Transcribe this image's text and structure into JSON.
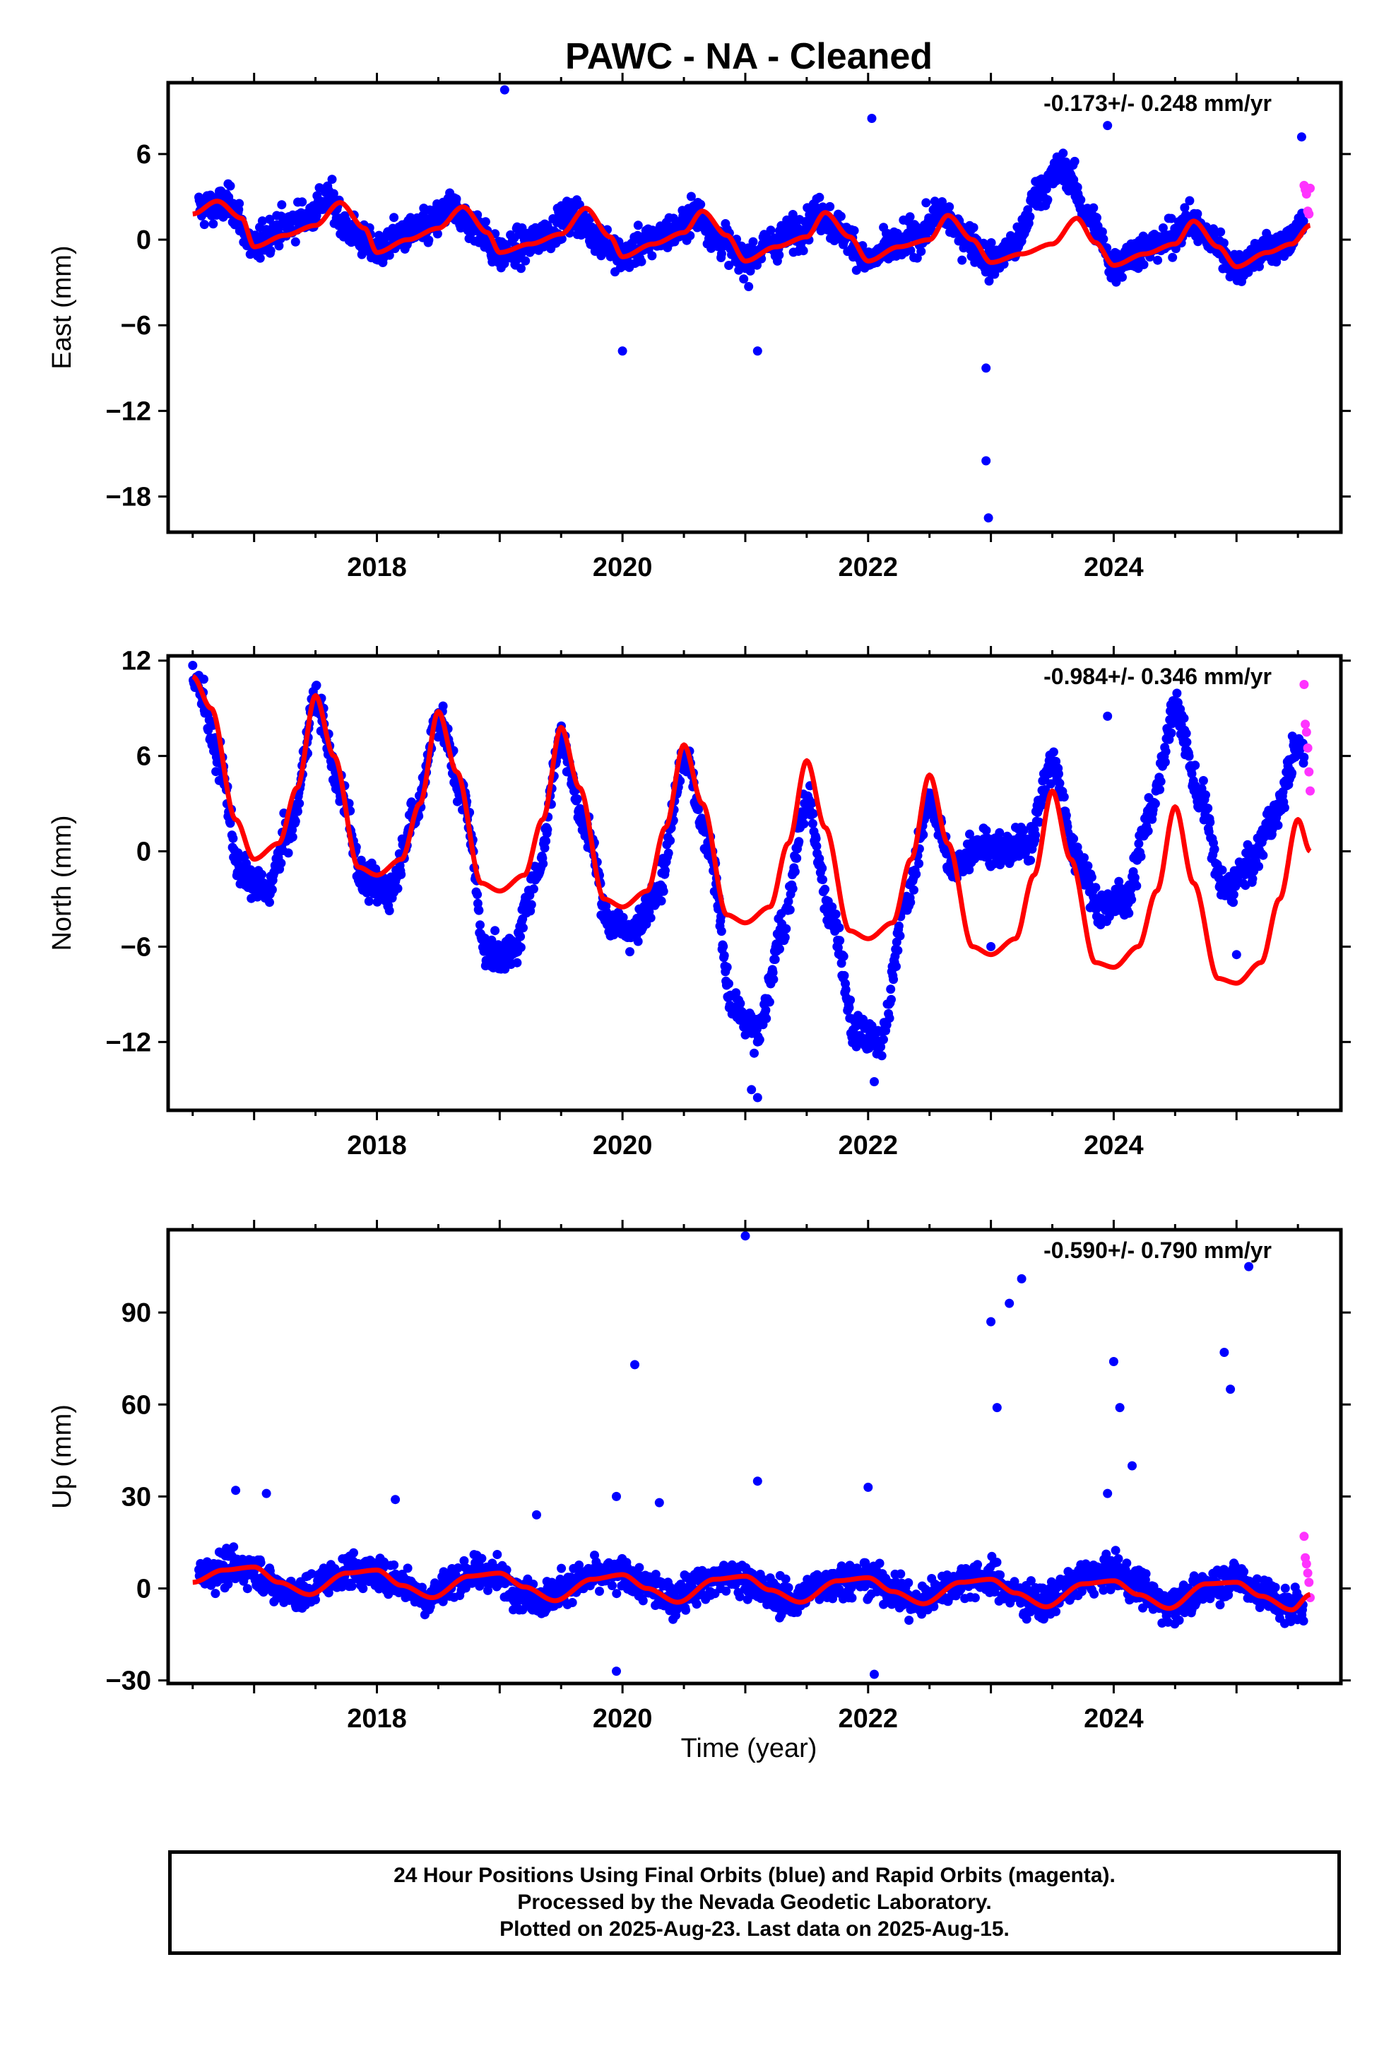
{
  "title": "PAWC  - NA - Cleaned",
  "xlabel": "Time (year)",
  "footer": {
    "line1": "24 Hour Positions Using Final Orbits (blue) and Rapid Orbits (magenta).",
    "line2": "Processed by the Nevada Geodetic Laboratory.",
    "line3": "Plotted on 2025-Aug-23. Last data on 2025-Aug-15."
  },
  "colors": {
    "final": "#0000ff",
    "rapid": "#ff33ff",
    "model": "#ff0000",
    "axis": "#000000"
  },
  "chart_data": [
    {
      "type": "scatter",
      "component": "East",
      "ylabel": "East (mm)",
      "rate_text": "-0.173+/- 0.248 mm/yr",
      "xlim": [
        2016.3,
        2025.85
      ],
      "ylim": [
        -20.5,
        11.0
      ],
      "x_ticks": [
        2018,
        2020,
        2022,
        2024
      ],
      "y_ticks": [
        -18,
        -12,
        -6,
        0,
        6
      ],
      "grid": false,
      "series": [
        {
          "name": "Final Orbits (blue)",
          "x": [
            2016.6,
            2016.8,
            2017.0,
            2017.2,
            2017.4,
            2017.6,
            2017.8,
            2018.0,
            2018.2,
            2018.4,
            2018.6,
            2018.8,
            2019.0,
            2019.2,
            2019.4,
            2019.6,
            2019.8,
            2020.0,
            2020.2,
            2020.4,
            2020.6,
            2020.8,
            2021.0,
            2021.2,
            2021.4,
            2021.6,
            2021.8,
            2022.0,
            2022.2,
            2022.4,
            2022.6,
            2022.8,
            2023.0,
            2023.2,
            2023.4,
            2023.6,
            2023.8,
            2024.0,
            2024.2,
            2024.4,
            2024.6,
            2024.8,
            2025.0,
            2025.2,
            2025.4,
            2025.5
          ],
          "y": [
            2.2,
            2.5,
            -0.5,
            0.8,
            1.5,
            2.8,
            0.5,
            -0.8,
            0.3,
            0.8,
            2.2,
            1.0,
            -1.0,
            -0.5,
            0.6,
            1.8,
            0.2,
            -1.2,
            -0.2,
            0.5,
            1.8,
            0.0,
            -1.5,
            -0.3,
            0.4,
            1.8,
            0.5,
            -1.5,
            -0.5,
            0.3,
            1.8,
            0.2,
            -1.6,
            -0.4,
            3.5,
            5.0,
            1.5,
            -1.8,
            -0.8,
            -0.2,
            1.2,
            0.0,
            -1.9,
            -0.9,
            -0.4,
            1.0
          ],
          "outliers_x": [
            2019.04,
            2022.03,
            2023.95,
            2022.96,
            2022.96,
            2022.98,
            2020.0,
            2021.1,
            2025.53
          ],
          "outliers_y": [
            10.5,
            8.5,
            8.0,
            -9.0,
            -15.5,
            -19.5,
            -7.8,
            -7.8,
            7.2
          ]
        },
        {
          "name": "Rapid Orbits (magenta)",
          "x": [
            2025.55,
            2025.56,
            2025.57,
            2025.58,
            2025.59,
            2025.6
          ],
          "y": [
            3.8,
            3.5,
            3.2,
            2.0,
            1.8,
            3.6
          ]
        }
      ],
      "model": {
        "name": "model",
        "anchor": [
          [
            2016.5,
            1.8
          ],
          [
            2016.7,
            2.7
          ],
          [
            2016.9,
            1.5
          ],
          [
            2017.0,
            -0.5
          ],
          [
            2017.25,
            0.3
          ],
          [
            2017.5,
            1.0
          ],
          [
            2017.7,
            2.6
          ],
          [
            2017.9,
            0.8
          ],
          [
            2018.0,
            -0.9
          ],
          [
            2018.25,
            0.0
          ],
          [
            2018.5,
            0.8
          ],
          [
            2018.7,
            2.3
          ],
          [
            2018.9,
            0.5
          ],
          [
            2019.0,
            -0.9
          ],
          [
            2019.25,
            -0.3
          ],
          [
            2019.5,
            0.4
          ],
          [
            2019.7,
            2.2
          ],
          [
            2019.9,
            0.2
          ],
          [
            2020.0,
            -1.2
          ],
          [
            2020.25,
            -0.3
          ],
          [
            2020.5,
            0.5
          ],
          [
            2020.65,
            2.0
          ],
          [
            2020.85,
            0.3
          ],
          [
            2021.0,
            -1.5
          ],
          [
            2021.25,
            -0.5
          ],
          [
            2021.5,
            0.2
          ],
          [
            2021.65,
            1.9
          ],
          [
            2021.85,
            0.2
          ],
          [
            2022.0,
            -1.5
          ],
          [
            2022.25,
            -0.5
          ],
          [
            2022.5,
            0.0
          ],
          [
            2022.65,
            1.7
          ],
          [
            2022.85,
            0.0
          ],
          [
            2023.0,
            -1.6
          ],
          [
            2023.25,
            -1.0
          ],
          [
            2023.5,
            -0.3
          ],
          [
            2023.7,
            1.5
          ],
          [
            2023.85,
            -0.2
          ],
          [
            2024.0,
            -1.8
          ],
          [
            2024.25,
            -1.0
          ],
          [
            2024.5,
            -0.3
          ],
          [
            2024.65,
            1.3
          ],
          [
            2024.85,
            -0.5
          ],
          [
            2025.0,
            -1.9
          ],
          [
            2025.25,
            -0.9
          ],
          [
            2025.45,
            -0.3
          ],
          [
            2025.6,
            1.0
          ]
        ]
      }
    },
    {
      "type": "scatter",
      "component": "North",
      "ylabel": "North (mm)",
      "rate_text": "-0.984+/- 0.346 mm/yr",
      "xlim": [
        2016.3,
        2025.85
      ],
      "ylim": [
        -16.3,
        12.3
      ],
      "x_ticks": [
        2018,
        2020,
        2022,
        2024
      ],
      "y_ticks": [
        -12,
        -6,
        0,
        6,
        12
      ],
      "grid": false,
      "series": [
        {
          "name": "Final Orbits (blue)",
          "x": [
            2016.55,
            2016.7,
            2016.9,
            2017.1,
            2017.3,
            2017.5,
            2017.7,
            2017.9,
            2018.1,
            2018.3,
            2018.5,
            2018.7,
            2018.9,
            2019.1,
            2019.3,
            2019.5,
            2019.7,
            2019.9,
            2020.1,
            2020.3,
            2020.5,
            2020.7,
            2020.9,
            2021.1,
            2021.3,
            2021.5,
            2021.7,
            2021.9,
            2022.1,
            2022.3,
            2022.5,
            2022.7,
            2022.9,
            2023.1,
            2023.3,
            2023.5,
            2023.7,
            2023.9,
            2024.1,
            2024.3,
            2024.5,
            2024.7,
            2024.9,
            2025.1,
            2025.3,
            2025.5
          ],
          "y": [
            10.5,
            6.0,
            -1.5,
            -2.5,
            1.5,
            9.5,
            4.0,
            -2.0,
            -2.5,
            2.0,
            8.5,
            3.5,
            -6.5,
            -6.5,
            -1.5,
            7.0,
            1.5,
            -4.5,
            -5.0,
            -2.0,
            6.0,
            0.5,
            -10.0,
            -11.5,
            -5.0,
            3.0,
            -4.0,
            -11.5,
            -12.0,
            -3.5,
            3.0,
            -1.0,
            0.5,
            0.0,
            0.5,
            5.5,
            -0.5,
            -3.5,
            -3.0,
            2.5,
            9.0,
            3.5,
            -2.5,
            -1.0,
            2.0,
            6.5
          ],
          "outliers_x": [
            2021.05,
            2021.1,
            2022.05,
            2023.0,
            2023.95,
            2025.0
          ],
          "outliers_y": [
            -15.0,
            -15.5,
            -14.5,
            -6.0,
            8.5,
            -6.5
          ]
        },
        {
          "name": "Rapid Orbits (magenta)",
          "x": [
            2025.55,
            2025.56,
            2025.57,
            2025.58,
            2025.59,
            2025.6
          ],
          "y": [
            10.5,
            8.0,
            7.5,
            6.5,
            5.0,
            3.8
          ]
        }
      ],
      "model": {
        "name": "model",
        "anchor": [
          [
            2016.5,
            11.0
          ],
          [
            2016.65,
            9.0
          ],
          [
            2016.85,
            2.0
          ],
          [
            2017.0,
            -0.5
          ],
          [
            2017.2,
            0.5
          ],
          [
            2017.35,
            4.0
          ],
          [
            2017.5,
            9.8
          ],
          [
            2017.65,
            6.0
          ],
          [
            2017.85,
            -1.0
          ],
          [
            2018.0,
            -1.5
          ],
          [
            2018.2,
            -0.5
          ],
          [
            2018.35,
            3.0
          ],
          [
            2018.5,
            8.8
          ],
          [
            2018.65,
            5.0
          ],
          [
            2018.85,
            -2.0
          ],
          [
            2019.0,
            -2.5
          ],
          [
            2019.2,
            -1.5
          ],
          [
            2019.35,
            2.0
          ],
          [
            2019.5,
            7.8
          ],
          [
            2019.65,
            4.0
          ],
          [
            2019.85,
            -3.0
          ],
          [
            2020.0,
            -3.5
          ],
          [
            2020.2,
            -2.5
          ],
          [
            2020.35,
            1.5
          ],
          [
            2020.5,
            6.7
          ],
          [
            2020.65,
            3.0
          ],
          [
            2020.85,
            -4.0
          ],
          [
            2021.0,
            -4.5
          ],
          [
            2021.2,
            -3.5
          ],
          [
            2021.35,
            0.5
          ],
          [
            2021.5,
            5.7
          ],
          [
            2021.65,
            1.5
          ],
          [
            2021.85,
            -5.0
          ],
          [
            2022.0,
            -5.5
          ],
          [
            2022.2,
            -4.5
          ],
          [
            2022.35,
            -0.5
          ],
          [
            2022.5,
            4.8
          ],
          [
            2022.65,
            0.5
          ],
          [
            2022.85,
            -6.0
          ],
          [
            2023.0,
            -6.5
          ],
          [
            2023.2,
            -5.5
          ],
          [
            2023.35,
            -1.5
          ],
          [
            2023.5,
            3.8
          ],
          [
            2023.65,
            -0.5
          ],
          [
            2023.85,
            -7.0
          ],
          [
            2024.0,
            -7.3
          ],
          [
            2024.2,
            -6.0
          ],
          [
            2024.35,
            -2.5
          ],
          [
            2024.5,
            2.8
          ],
          [
            2024.65,
            -2.0
          ],
          [
            2024.85,
            -8.0
          ],
          [
            2025.0,
            -8.3
          ],
          [
            2025.2,
            -7.0
          ],
          [
            2025.35,
            -3.0
          ],
          [
            2025.5,
            2.0
          ],
          [
            2025.6,
            0.0
          ]
        ]
      }
    },
    {
      "type": "scatter",
      "component": "Up",
      "ylabel": "Up (mm)",
      "rate_text": "-0.590+/- 0.790 mm/yr",
      "xlim": [
        2016.3,
        2025.85
      ],
      "ylim": [
        -31.0,
        117.0
      ],
      "x_ticks": [
        2018,
        2020,
        2022,
        2024
      ],
      "y_ticks": [
        -30,
        0,
        30,
        60,
        90
      ],
      "grid": false,
      "series": [
        {
          "name": "Final Orbits (blue)",
          "x": [
            2016.6,
            2016.8,
            2017.0,
            2017.2,
            2017.4,
            2017.6,
            2017.8,
            2018.0,
            2018.2,
            2018.4,
            2018.6,
            2018.8,
            2019.0,
            2019.2,
            2019.4,
            2019.6,
            2019.8,
            2020.0,
            2020.2,
            2020.4,
            2020.6,
            2020.8,
            2021.0,
            2021.2,
            2021.4,
            2021.6,
            2021.8,
            2022.0,
            2022.2,
            2022.4,
            2022.6,
            2022.8,
            2023.0,
            2023.2,
            2023.4,
            2023.6,
            2023.8,
            2024.0,
            2024.2,
            2024.4,
            2024.6,
            2024.8,
            2025.0,
            2025.2,
            2025.4,
            2025.5
          ],
          "y": [
            5.0,
            7.0,
            6.0,
            0.0,
            -2.0,
            3.0,
            6.0,
            5.0,
            2.0,
            -3.0,
            2.0,
            5.0,
            4.0,
            -2.0,
            -3.0,
            2.0,
            4.0,
            4.0,
            1.0,
            -4.0,
            1.0,
            4.0,
            3.0,
            -2.0,
            -4.0,
            1.0,
            3.0,
            3.0,
            0.0,
            -5.0,
            0.0,
            3.0,
            3.0,
            -2.0,
            -5.0,
            0.0,
            4.0,
            5.0,
            1.0,
            -5.0,
            -4.0,
            2.0,
            3.0,
            -1.0,
            -6.0,
            -5.0
          ],
          "outliers_x": [
            2016.85,
            2017.1,
            2018.15,
            2019.3,
            2019.95,
            2020.1,
            2020.3,
            2021.0,
            2021.1,
            2022.0,
            2023.0,
            2023.05,
            2023.15,
            2023.25,
            2023.95,
            2024.0,
            2024.05,
            2024.15,
            2024.9,
            2024.95,
            2025.1,
            2019.95,
            2022.05
          ],
          "outliers_y": [
            32.0,
            31.0,
            29.0,
            24.0,
            30.0,
            73.0,
            28.0,
            115.0,
            35.0,
            33.0,
            87.0,
            59.0,
            93.0,
            101.0,
            31.0,
            74.0,
            59.0,
            40.0,
            77.0,
            65.0,
            105.0,
            -27.0,
            -28.0
          ]
        },
        {
          "name": "Rapid Orbits (magenta)",
          "x": [
            2025.55,
            2025.56,
            2025.57,
            2025.58,
            2025.59,
            2025.6
          ],
          "y": [
            17.0,
            10.0,
            8.0,
            5.0,
            2.0,
            -3.0
          ]
        }
      ],
      "model": {
        "name": "model",
        "anchor": [
          [
            2016.5,
            2.0
          ],
          [
            2016.75,
            6.0
          ],
          [
            2017.0,
            7.0
          ],
          [
            2017.2,
            2.0
          ],
          [
            2017.45,
            -2.0
          ],
          [
            2017.75,
            5.0
          ],
          [
            2018.0,
            6.0
          ],
          [
            2018.2,
            1.0
          ],
          [
            2018.45,
            -3.0
          ],
          [
            2018.75,
            4.0
          ],
          [
            2019.0,
            5.0
          ],
          [
            2019.2,
            0.5
          ],
          [
            2019.45,
            -4.0
          ],
          [
            2019.75,
            3.0
          ],
          [
            2020.0,
            4.5
          ],
          [
            2020.2,
            0.0
          ],
          [
            2020.45,
            -4.5
          ],
          [
            2020.75,
            3.0
          ],
          [
            2021.0,
            4.0
          ],
          [
            2021.2,
            -0.5
          ],
          [
            2021.45,
            -4.5
          ],
          [
            2021.75,
            2.5
          ],
          [
            2022.0,
            3.5
          ],
          [
            2022.2,
            -1.0
          ],
          [
            2022.45,
            -5.0
          ],
          [
            2022.75,
            2.0
          ],
          [
            2023.0,
            3.0
          ],
          [
            2023.2,
            -1.5
          ],
          [
            2023.45,
            -6.0
          ],
          [
            2023.75,
            1.5
          ],
          [
            2024.0,
            2.5
          ],
          [
            2024.2,
            -2.0
          ],
          [
            2024.45,
            -6.5
          ],
          [
            2024.75,
            1.5
          ],
          [
            2025.0,
            2.0
          ],
          [
            2025.2,
            -2.5
          ],
          [
            2025.45,
            -7.0
          ],
          [
            2025.6,
            -2.0
          ]
        ]
      }
    }
  ]
}
